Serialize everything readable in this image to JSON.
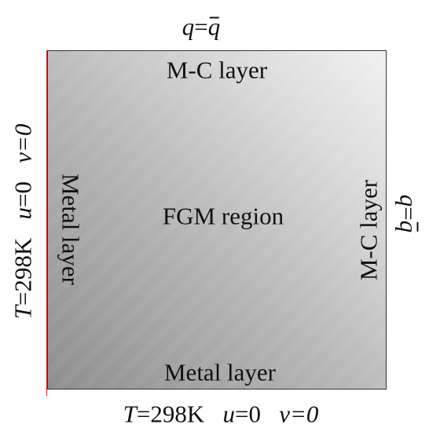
{
  "boundary_top": {
    "var": "q",
    "eq": "=",
    "bar_var": "q"
  },
  "boundary_right": {
    "var": "q",
    "eq": "=",
    "bar_var": "q"
  },
  "boundary_left": {
    "T": "T",
    "temp": "=298K",
    "u": "u",
    "u_val": "=0",
    "v": "v",
    "v_val": "=0"
  },
  "boundary_bottom": {
    "T": "T",
    "temp": "=298K",
    "u": "u",
    "u_val": "=0",
    "v": "v",
    "v_val": "=0"
  },
  "regions": {
    "top": "M-C layer",
    "right": "M-C layer",
    "left": "Metal layer",
    "bottom": "Metal layer",
    "center": "FGM region"
  },
  "colors": {
    "gradient_dark": "#8e8e8e",
    "gradient_light": "#f1f1f1",
    "left_edge_accent": "#e0201c"
  }
}
